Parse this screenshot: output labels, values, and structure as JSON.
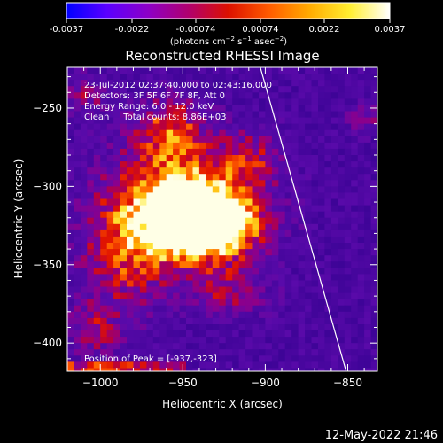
{
  "chart_data": {
    "type": "heatmap",
    "title": "Reconstructed RHESSI Image",
    "xlabel": "Heliocentric X (arcsec)",
    "ylabel": "Heliocentric Y (arcsec)",
    "xlim": [
      -1020,
      -832
    ],
    "ylim": [
      -418,
      -224
    ],
    "x_ticks": [
      -1000,
      -950,
      -900,
      -850
    ],
    "x_tick_labels": [
      "−1000",
      "−950",
      "−900",
      "−850"
    ],
    "y_ticks": [
      -250,
      -300,
      -350,
      -400
    ],
    "y_tick_labels": [
      "−250",
      "−300",
      "−350",
      "−400"
    ],
    "colorbar": {
      "range": [
        -0.0037,
        0.0037
      ],
      "ticks": [
        -0.0037,
        -0.0022,
        -0.00074,
        0.00074,
        0.0022,
        0.0037
      ],
      "tick_labels": [
        "-0.0037",
        "-0.0022",
        "-0.00074",
        "0.00074",
        "0.0022",
        "0.0037"
      ],
      "units_text": "(photons cm",
      "units_sup1": "−2",
      "units_mid": " s",
      "units_sup2": "−1",
      "units_end": " asec",
      "units_sup3": "−2",
      "units_close": ")",
      "colors": [
        "#0000ff",
        "#5a00ff",
        "#8c00c8",
        "#b00070",
        "#dc1000",
        "#ff5a00",
        "#ffaa00",
        "#ffee30",
        "#ffffff"
      ]
    },
    "annotations": [
      "23-Jul-2012 02:37:40.000 to 02:43:16.000",
      "Detectors: 3F 5F 6F 7F 8F, Att 0",
      "Energy Range: 6.0 - 12.0 keV",
      "Clean     Total counts: 8.86E+03"
    ],
    "peak_label": "Position of Peak = [-937,-323]",
    "peak": [
      -937,
      -323
    ],
    "limb_line": [
      [
        -903,
        -224
      ],
      [
        -851,
        -418
      ]
    ]
  },
  "timestamp": "12-May-2022 21:46"
}
